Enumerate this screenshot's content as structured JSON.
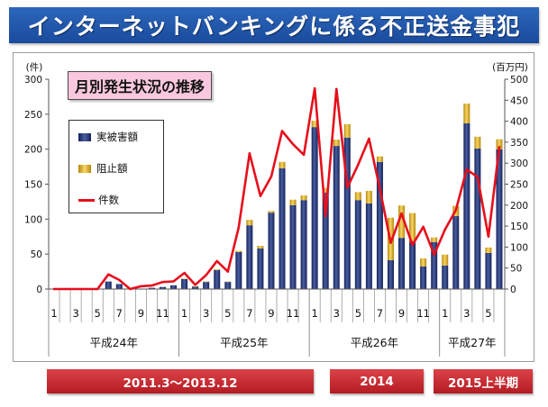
{
  "header": {
    "title": "インターネットバンキングに係る不正送金事犯"
  },
  "colors": {
    "title_bar": "#1e55a8",
    "title_text": "#ffffff",
    "chart_title_bg": "#f9c8de",
    "period_bg": "#c8232b",
    "axis": "#555555"
  },
  "chart_data": {
    "type": "bar",
    "title": "月別発生状況の推移",
    "legend": "top-left",
    "grid": false,
    "y_left": {
      "label": "(件)",
      "range": [
        0,
        300
      ],
      "ticks": [
        0,
        50,
        100,
        150,
        200,
        250,
        300
      ]
    },
    "y_right": {
      "label": "(百万円)",
      "range": [
        0,
        500
      ],
      "ticks": [
        0,
        50,
        100,
        150,
        200,
        250,
        300,
        350,
        400,
        450,
        500
      ]
    },
    "categories": [
      "1",
      "",
      "3",
      "",
      "5",
      "",
      "7",
      "",
      "9",
      "",
      "11",
      "",
      "1",
      "",
      "3",
      "",
      "5",
      "",
      "7",
      "",
      "9",
      "",
      "11",
      "",
      "1",
      "",
      "3",
      "",
      "5",
      "",
      "7",
      "",
      "9",
      "",
      "11",
      "",
      "1",
      "",
      "3",
      "",
      "5",
      ""
    ],
    "year_groups": [
      {
        "label": "平成24年",
        "span": 12
      },
      {
        "label": "平成25年",
        "span": 12
      },
      {
        "label": "平成26年",
        "span": 12
      },
      {
        "label": "平成27年",
        "span": 6
      }
    ],
    "series": [
      {
        "name": "実被害額",
        "type": "bar",
        "axis": "right",
        "color": "#14215a",
        "highlight": "#4a5f9e",
        "values": [
          0,
          0,
          0,
          0,
          0,
          18,
          12,
          0,
          1,
          3,
          5,
          9,
          24,
          6,
          17,
          45,
          17,
          88,
          152,
          97,
          182,
          288,
          200,
          212,
          386,
          230,
          341,
          361,
          212,
          204,
          303,
          69,
          122,
          114,
          54,
          112,
          56,
          174,
          395,
          335,
          86,
          333
        ]
      },
      {
        "name": "阻止額",
        "type": "bar",
        "stacked": true,
        "axis": "right",
        "color": "#b8860b",
        "highlight": "#f6d766",
        "values": [
          0,
          0,
          0,
          0,
          0,
          0,
          0,
          0,
          0,
          0,
          0,
          0,
          1,
          1,
          1,
          2,
          1,
          3,
          13,
          6,
          4,
          15,
          13,
          11,
          15,
          11,
          15,
          32,
          19,
          30,
          13,
          101,
          77,
          67,
          19,
          11,
          26,
          24,
          47,
          28,
          13,
          24
        ]
      },
      {
        "name": "件数",
        "type": "line",
        "axis": "left",
        "color": "#e60f1c",
        "values": [
          0,
          0,
          0,
          0,
          0,
          21,
          13,
          0,
          4,
          5,
          10,
          11,
          23,
          6,
          20,
          40,
          25,
          88,
          194,
          133,
          161,
          226,
          207,
          192,
          287,
          104,
          286,
          145,
          178,
          215,
          143,
          66,
          108,
          63,
          89,
          49,
          85,
          113,
          171,
          160,
          75,
          203
        ]
      }
    ]
  },
  "periods": [
    {
      "label": "2011.3～2013.12"
    },
    {
      "label": "2014"
    },
    {
      "label": "2015上半期"
    }
  ]
}
